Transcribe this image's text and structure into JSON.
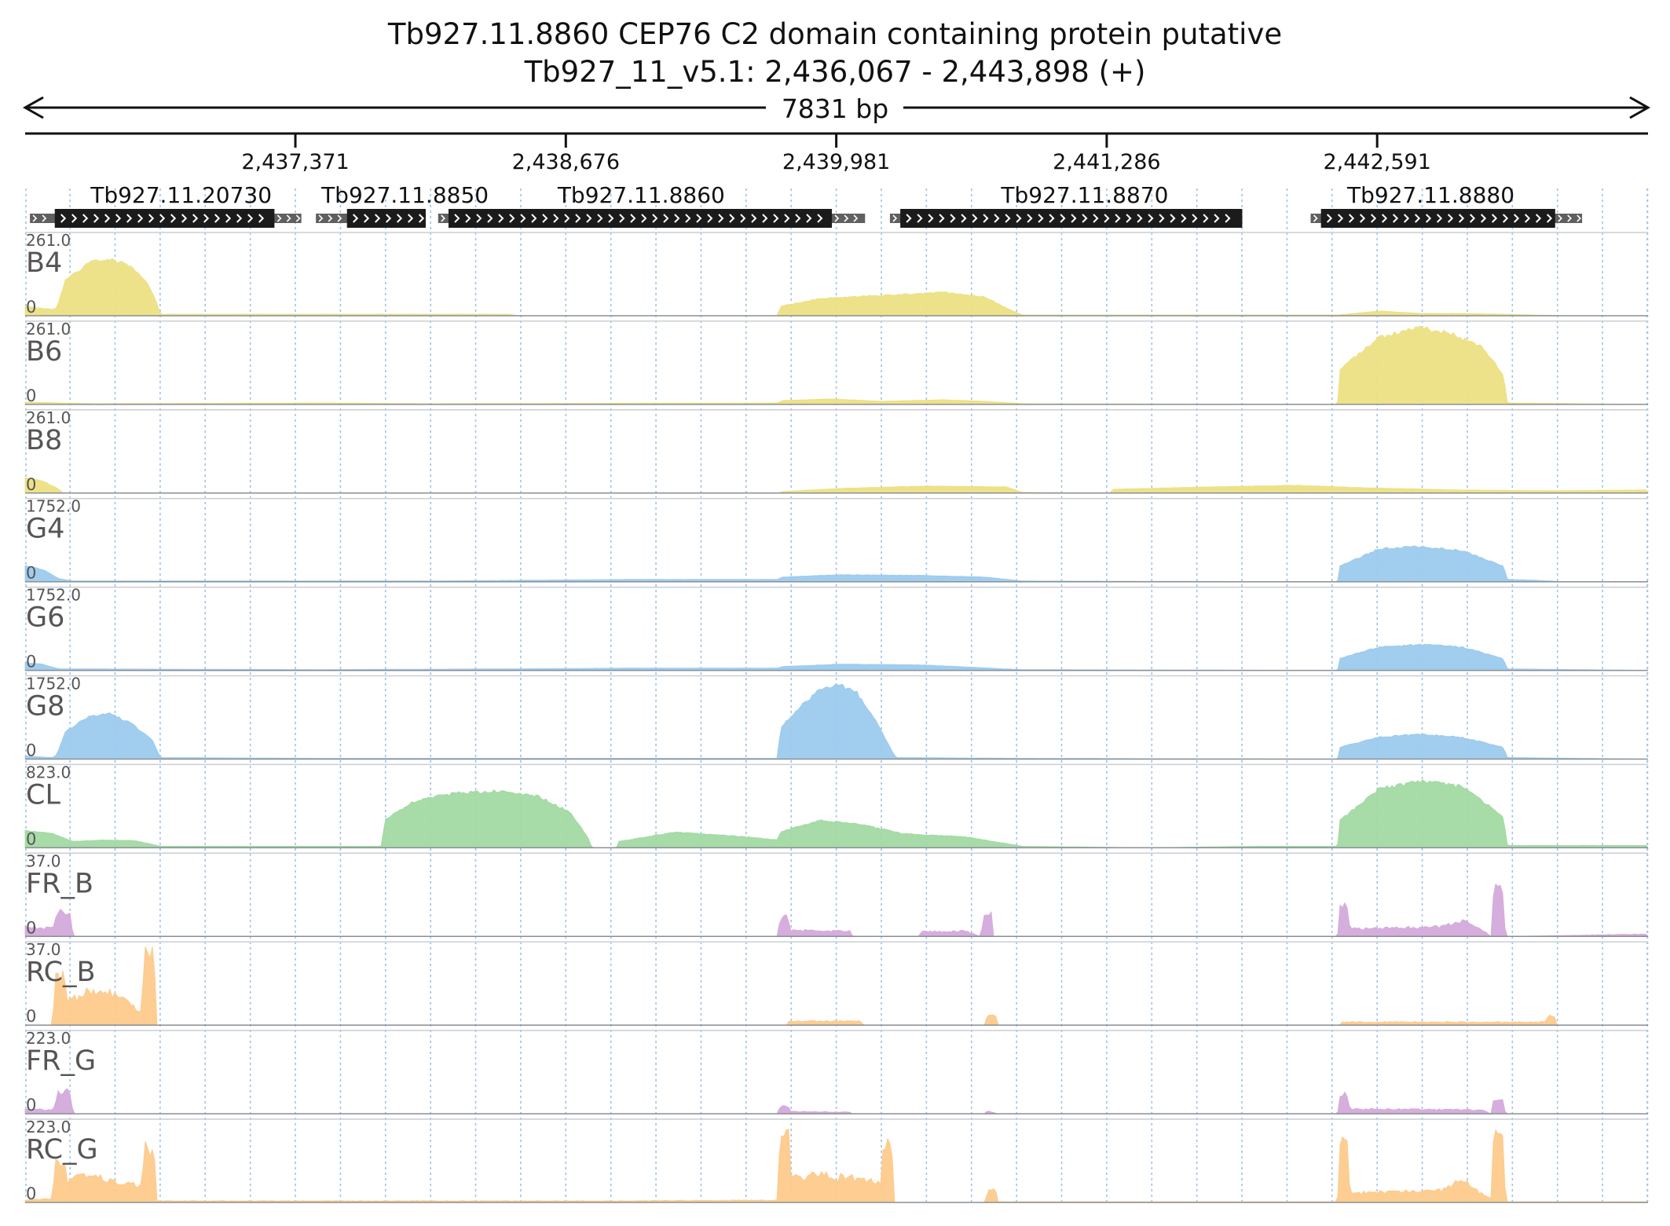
{
  "header": {
    "title": "Tb927.11.8860  CEP76 C2 domain containing protein  putative",
    "locus": "Tb927_11_v5.1: 2,436,067 - 2,443,898 (+)",
    "span": "7831 bp"
  },
  "region": {
    "start": 2436067,
    "end": 2443898
  },
  "ruler": {
    "ticks": [
      {
        "pos": 2437371,
        "label": "2,437,371"
      },
      {
        "pos": 2438676,
        "label": "2,438,676"
      },
      {
        "pos": 2439981,
        "label": "2,439,981"
      },
      {
        "pos": 2441286,
        "label": "2,441,286"
      },
      {
        "pos": 2442591,
        "label": "2,442,591"
      }
    ]
  },
  "genes": [
    {
      "name": "Tb927.11.20730",
      "utr_start": 2436090,
      "cds_start": 2436210,
      "cds_end": 2437270,
      "utr_end": 2437400,
      "label_pos": 2436820
    },
    {
      "name": "Tb927.11.8850",
      "utr_start": 2437470,
      "cds_start": 2437620,
      "cds_end": 2438000,
      "utr_end": 2438000,
      "label_pos": 2437900
    },
    {
      "name": "Tb927.11.8860",
      "utr_start": 2438060,
      "cds_start": 2438110,
      "cds_end": 2439960,
      "utr_end": 2440120,
      "label_pos": 2439040
    },
    {
      "name": "Tb927.11.8870",
      "utr_start": 2440240,
      "cds_start": 2440290,
      "cds_end": 2441940,
      "utr_end": 2441940,
      "label_pos": 2441180
    },
    {
      "name": "Tb927.11.8880",
      "utr_start": 2442270,
      "cds_start": 2442320,
      "cds_end": 2443450,
      "utr_end": 2443580,
      "label_pos": 2442850
    }
  ],
  "colors": {
    "yellow": "#ece083",
    "blue": "#9ccaee",
    "green": "#a2d9a2",
    "purple": "#d4aadb",
    "orange": "#fdca8c",
    "gene": "#1b1b1b",
    "utr": "#606060",
    "grid": "#9ec3e8"
  },
  "tracks": [
    {
      "name": "B4",
      "max": "261.0",
      "zero": "0",
      "color": "yellow",
      "style": "smooth",
      "profile": [
        [
          2436067,
          0.12
        ],
        [
          2436200,
          0.08
        ],
        [
          2436220,
          0.1
        ],
        [
          2436260,
          0.45
        ],
        [
          2436380,
          0.68
        ],
        [
          2436470,
          0.72
        ],
        [
          2436560,
          0.66
        ],
        [
          2436650,
          0.45
        ],
        [
          2436700,
          0.18
        ],
        [
          2436720,
          0.02
        ],
        [
          2437000,
          0.02
        ],
        [
          2437500,
          0.02
        ],
        [
          2438000,
          0.02
        ],
        [
          2438400,
          0.02
        ],
        [
          2438450,
          0.0
        ],
        [
          2439700,
          0.0
        ],
        [
          2439710,
          0.12
        ],
        [
          2439900,
          0.22
        ],
        [
          2440200,
          0.26
        ],
        [
          2440500,
          0.3
        ],
        [
          2440700,
          0.24
        ],
        [
          2440800,
          0.1
        ],
        [
          2440880,
          0.01
        ],
        [
          2442400,
          0.01
        ],
        [
          2442600,
          0.06
        ],
        [
          2442800,
          0.03
        ],
        [
          2443000,
          0.03
        ],
        [
          2443200,
          0.02
        ],
        [
          2443500,
          0.0
        ],
        [
          2443898,
          0.0
        ]
      ]
    },
    {
      "name": "B6",
      "max": "261.0",
      "zero": "0",
      "color": "yellow",
      "style": "smooth",
      "profile": [
        [
          2436067,
          0.03
        ],
        [
          2436400,
          0.01
        ],
        [
          2437500,
          0.02
        ],
        [
          2438000,
          0.01
        ],
        [
          2439700,
          0.02
        ],
        [
          2439720,
          0.05
        ],
        [
          2439950,
          0.07
        ],
        [
          2440200,
          0.04
        ],
        [
          2440500,
          0.06
        ],
        [
          2440700,
          0.04
        ],
        [
          2440880,
          0.01
        ],
        [
          2442400,
          0.0
        ],
        [
          2442410,
          0.45
        ],
        [
          2442600,
          0.85
        ],
        [
          2442800,
          0.98
        ],
        [
          2442950,
          0.9
        ],
        [
          2443100,
          0.72
        ],
        [
          2443200,
          0.38
        ],
        [
          2443220,
          0.02
        ],
        [
          2443898,
          0.0
        ]
      ]
    },
    {
      "name": "B8",
      "max": "261.0",
      "zero": "0",
      "color": "yellow",
      "style": "smooth",
      "profile": [
        [
          2436067,
          0.2
        ],
        [
          2436150,
          0.16
        ],
        [
          2436230,
          0.05
        ],
        [
          2436250,
          0.0
        ],
        [
          2439700,
          0.0
        ],
        [
          2439720,
          0.02
        ],
        [
          2440000,
          0.06
        ],
        [
          2440400,
          0.09
        ],
        [
          2440800,
          0.08
        ],
        [
          2440880,
          0.01
        ],
        [
          2441300,
          0.0
        ],
        [
          2441320,
          0.05
        ],
        [
          2441800,
          0.08
        ],
        [
          2442200,
          0.1
        ],
        [
          2442500,
          0.07
        ],
        [
          2443000,
          0.04
        ],
        [
          2443400,
          0.03
        ],
        [
          2443898,
          0.04
        ]
      ]
    },
    {
      "name": "G4",
      "max": "1752.0",
      "zero": "0",
      "color": "blue",
      "style": "smooth",
      "profile": [
        [
          2436067,
          0.2
        ],
        [
          2436150,
          0.16
        ],
        [
          2436230,
          0.04
        ],
        [
          2436300,
          0.01
        ],
        [
          2437500,
          0.01
        ],
        [
          2438000,
          0.01
        ],
        [
          2438500,
          0.02
        ],
        [
          2439000,
          0.03
        ],
        [
          2439700,
          0.03
        ],
        [
          2439720,
          0.06
        ],
        [
          2440000,
          0.09
        ],
        [
          2440400,
          0.08
        ],
        [
          2440700,
          0.06
        ],
        [
          2440880,
          0.01
        ],
        [
          2442400,
          0.0
        ],
        [
          2442410,
          0.2
        ],
        [
          2442600,
          0.42
        ],
        [
          2442800,
          0.45
        ],
        [
          2443000,
          0.4
        ],
        [
          2443200,
          0.2
        ],
        [
          2443220,
          0.03
        ],
        [
          2443350,
          0.02
        ],
        [
          2443500,
          0.0
        ],
        [
          2443898,
          0.0
        ]
      ]
    },
    {
      "name": "G6",
      "max": "1752.0",
      "zero": "0",
      "color": "blue",
      "style": "smooth",
      "profile": [
        [
          2436067,
          0.1
        ],
        [
          2436150,
          0.08
        ],
        [
          2436230,
          0.02
        ],
        [
          2437500,
          0.01
        ],
        [
          2438400,
          0.02
        ],
        [
          2439000,
          0.03
        ],
        [
          2439700,
          0.03
        ],
        [
          2439720,
          0.05
        ],
        [
          2440000,
          0.08
        ],
        [
          2440400,
          0.07
        ],
        [
          2440880,
          0.01
        ],
        [
          2442400,
          0.0
        ],
        [
          2442410,
          0.15
        ],
        [
          2442600,
          0.3
        ],
        [
          2442800,
          0.33
        ],
        [
          2443000,
          0.3
        ],
        [
          2443200,
          0.15
        ],
        [
          2443220,
          0.02
        ],
        [
          2443898,
          0.0
        ]
      ]
    },
    {
      "name": "G8",
      "max": "1752.0",
      "zero": "0",
      "color": "blue",
      "style": "smooth",
      "profile": [
        [
          2436067,
          0.04
        ],
        [
          2436200,
          0.02
        ],
        [
          2436220,
          0.06
        ],
        [
          2436260,
          0.35
        ],
        [
          2436380,
          0.55
        ],
        [
          2436480,
          0.58
        ],
        [
          2436580,
          0.45
        ],
        [
          2436680,
          0.25
        ],
        [
          2436720,
          0.02
        ],
        [
          2437500,
          0.01
        ],
        [
          2438400,
          0.01
        ],
        [
          2439700,
          0.01
        ],
        [
          2439710,
          0.4
        ],
        [
          2439800,
          0.65
        ],
        [
          2439900,
          0.88
        ],
        [
          2439990,
          0.95
        ],
        [
          2440080,
          0.85
        ],
        [
          2440170,
          0.5
        ],
        [
          2440250,
          0.1
        ],
        [
          2440270,
          0.02
        ],
        [
          2440880,
          0.01
        ],
        [
          2442400,
          0.0
        ],
        [
          2442410,
          0.15
        ],
        [
          2442600,
          0.28
        ],
        [
          2442800,
          0.32
        ],
        [
          2443000,
          0.28
        ],
        [
          2443200,
          0.15
        ],
        [
          2443220,
          0.02
        ],
        [
          2443898,
          0.0
        ]
      ]
    },
    {
      "name": "CL",
      "max": "823.0",
      "zero": "0",
      "color": "green",
      "style": "smooth",
      "profile": [
        [
          2436067,
          0.22
        ],
        [
          2436200,
          0.18
        ],
        [
          2436300,
          0.08
        ],
        [
          2436450,
          0.1
        ],
        [
          2436600,
          0.09
        ],
        [
          2436720,
          0.02
        ],
        [
          2437600,
          0.02
        ],
        [
          2437790,
          0.02
        ],
        [
          2437800,
          0.35
        ],
        [
          2437950,
          0.6
        ],
        [
          2438150,
          0.7
        ],
        [
          2438350,
          0.72
        ],
        [
          2438550,
          0.65
        ],
        [
          2438700,
          0.45
        ],
        [
          2438790,
          0.1
        ],
        [
          2438800,
          0.0
        ],
        [
          2438920,
          0.0
        ],
        [
          2438930,
          0.08
        ],
        [
          2439200,
          0.2
        ],
        [
          2439500,
          0.15
        ],
        [
          2439700,
          0.1
        ],
        [
          2439710,
          0.2
        ],
        [
          2439900,
          0.35
        ],
        [
          2440100,
          0.3
        ],
        [
          2440300,
          0.18
        ],
        [
          2440600,
          0.14
        ],
        [
          2440880,
          0.02
        ],
        [
          2441500,
          0.0
        ],
        [
          2442000,
          0.02
        ],
        [
          2442400,
          0.02
        ],
        [
          2442410,
          0.35
        ],
        [
          2442600,
          0.75
        ],
        [
          2442800,
          0.85
        ],
        [
          2443000,
          0.78
        ],
        [
          2443200,
          0.4
        ],
        [
          2443220,
          0.03
        ],
        [
          2443898,
          0.03
        ]
      ]
    },
    {
      "name": "FR_B",
      "max": "37.0",
      "zero": "0",
      "color": "purple",
      "style": "spiky",
      "profile": [
        [
          2436067,
          0.12
        ],
        [
          2436200,
          0.1
        ],
        [
          2436230,
          0.32
        ],
        [
          2436280,
          0.32
        ],
        [
          2436300,
          0.0
        ],
        [
          2439700,
          0.0
        ],
        [
          2439710,
          0.25
        ],
        [
          2439750,
          0.25
        ],
        [
          2439760,
          0.08
        ],
        [
          2440050,
          0.07
        ],
        [
          2440060,
          0.0
        ],
        [
          2440380,
          0.0
        ],
        [
          2440390,
          0.06
        ],
        [
          2440600,
          0.07
        ],
        [
          2440680,
          0.0
        ],
        [
          2440690,
          0.28
        ],
        [
          2440730,
          0.28
        ],
        [
          2440740,
          0.0
        ],
        [
          2442400,
          0.0
        ],
        [
          2442410,
          0.38
        ],
        [
          2442450,
          0.38
        ],
        [
          2442460,
          0.1
        ],
        [
          2442900,
          0.12
        ],
        [
          2443000,
          0.2
        ],
        [
          2443100,
          0.08
        ],
        [
          2443140,
          0.0
        ],
        [
          2443150,
          0.58
        ],
        [
          2443200,
          0.58
        ],
        [
          2443210,
          0.0
        ],
        [
          2443898,
          0.03
        ]
      ]
    },
    {
      "name": "RC_B",
      "max": "37.0",
      "zero": "0",
      "color": "orange",
      "style": "spiky",
      "profile": [
        [
          2436067,
          0.0
        ],
        [
          2436200,
          0.0
        ],
        [
          2436210,
          0.6
        ],
        [
          2436260,
          0.6
        ],
        [
          2436270,
          0.3
        ],
        [
          2436400,
          0.45
        ],
        [
          2436550,
          0.35
        ],
        [
          2436630,
          0.15
        ],
        [
          2436640,
          0.98
        ],
        [
          2436690,
          0.98
        ],
        [
          2436700,
          0.0
        ],
        [
          2439740,
          0.0
        ],
        [
          2439750,
          0.05
        ],
        [
          2440100,
          0.05
        ],
        [
          2440110,
          0.0
        ],
        [
          2440700,
          0.0
        ],
        [
          2440710,
          0.12
        ],
        [
          2440750,
          0.12
        ],
        [
          2440760,
          0.0
        ],
        [
          2442410,
          0.0
        ],
        [
          2442420,
          0.04
        ],
        [
          2443400,
          0.04
        ],
        [
          2443420,
          0.12
        ],
        [
          2443450,
          0.12
        ],
        [
          2443460,
          0.0
        ],
        [
          2443898,
          0.0
        ]
      ]
    },
    {
      "name": "FR_G",
      "max": "223.0",
      "zero": "0",
      "color": "purple",
      "style": "spiky",
      "profile": [
        [
          2436067,
          0.06
        ],
        [
          2436200,
          0.05
        ],
        [
          2436230,
          0.28
        ],
        [
          2436280,
          0.28
        ],
        [
          2436300,
          0.0
        ],
        [
          2439700,
          0.0
        ],
        [
          2439710,
          0.1
        ],
        [
          2439750,
          0.1
        ],
        [
          2439760,
          0.03
        ],
        [
          2440050,
          0.02
        ],
        [
          2440060,
          0.0
        ],
        [
          2440700,
          0.0
        ],
        [
          2440710,
          0.04
        ],
        [
          2440760,
          0.0
        ],
        [
          2442400,
          0.0
        ],
        [
          2442410,
          0.25
        ],
        [
          2442450,
          0.25
        ],
        [
          2442460,
          0.06
        ],
        [
          2443100,
          0.05
        ],
        [
          2443140,
          0.0
        ],
        [
          2443150,
          0.18
        ],
        [
          2443200,
          0.18
        ],
        [
          2443210,
          0.0
        ],
        [
          2443898,
          0.0
        ]
      ]
    },
    {
      "name": "RC_G",
      "max": "223.0",
      "zero": "0",
      "color": "orange",
      "style": "spiky",
      "profile": [
        [
          2436067,
          0.03
        ],
        [
          2436200,
          0.05
        ],
        [
          2436210,
          0.48
        ],
        [
          2436260,
          0.48
        ],
        [
          2436270,
          0.28
        ],
        [
          2436400,
          0.35
        ],
        [
          2436550,
          0.25
        ],
        [
          2436630,
          0.2
        ],
        [
          2436640,
          0.7
        ],
        [
          2436690,
          0.7
        ],
        [
          2436700,
          0.02
        ],
        [
          2438900,
          0.02
        ],
        [
          2439700,
          0.03
        ],
        [
          2439710,
          1.0
        ],
        [
          2439750,
          1.0
        ],
        [
          2439760,
          0.3
        ],
        [
          2439900,
          0.35
        ],
        [
          2440100,
          0.3
        ],
        [
          2440200,
          0.28
        ],
        [
          2440210,
          0.78
        ],
        [
          2440250,
          0.78
        ],
        [
          2440260,
          0.0
        ],
        [
          2440700,
          0.0
        ],
        [
          2440710,
          0.15
        ],
        [
          2440750,
          0.15
        ],
        [
          2440760,
          0.01
        ],
        [
          2442400,
          0.01
        ],
        [
          2442410,
          0.72
        ],
        [
          2442450,
          0.72
        ],
        [
          2442460,
          0.12
        ],
        [
          2442900,
          0.15
        ],
        [
          2443000,
          0.3
        ],
        [
          2443100,
          0.1
        ],
        [
          2443140,
          0.05
        ],
        [
          2443150,
          0.85
        ],
        [
          2443200,
          0.85
        ],
        [
          2443210,
          0.01
        ],
        [
          2443898,
          0.01
        ]
      ]
    }
  ]
}
